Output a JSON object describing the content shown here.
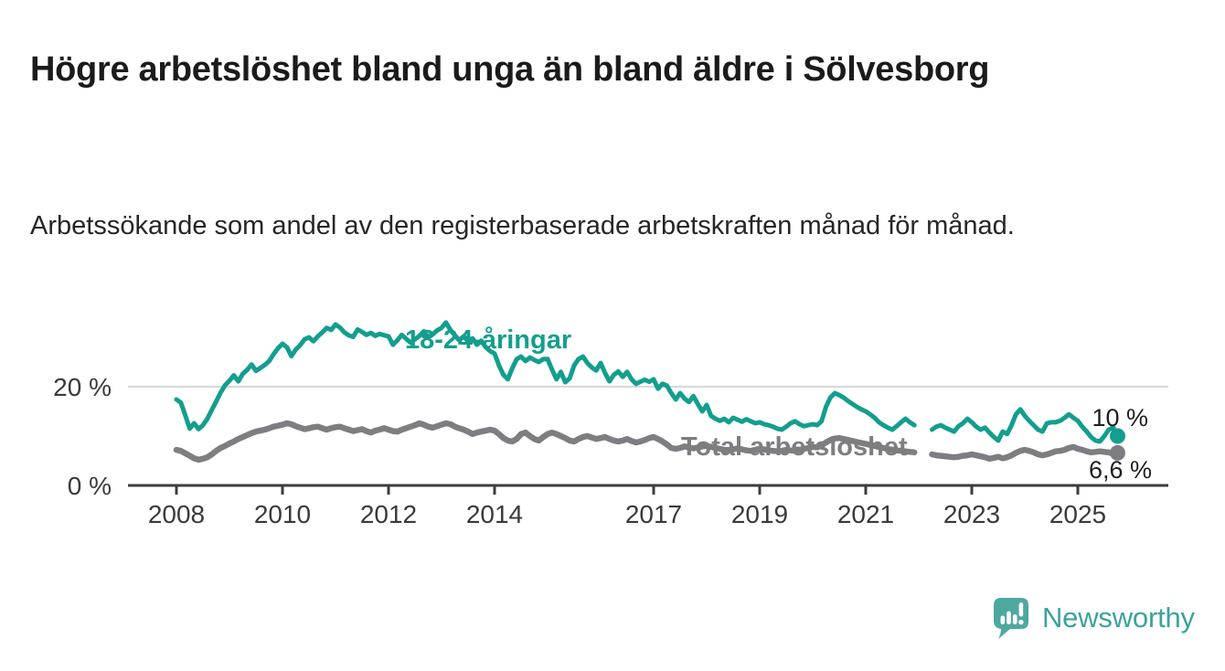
{
  "title": "Högre arbetslöshet bland unga än bland äldre i Sölvesborg",
  "subtitle": "Arbetssökande som andel av den registerbaserade arbetskraften månad för månad.",
  "branding": {
    "logo_text": "Newsworthy",
    "logo_text_color": "#3ba39b",
    "logo_icon_color": "#4da9a0"
  },
  "colors": {
    "youth_line": "#139e8e",
    "total_line": "#7d7d82",
    "gridline": "#d8d8d8",
    "axis": "#3c3c3c",
    "tick_text": "#3a3a3a",
    "end_label_text": "#1f1f1f"
  },
  "chart_data": {
    "type": "line",
    "title": "Högre arbetslöshet bland unga än bland äldre i Sölvesborg",
    "subtitle": "Arbetssökande som andel av den registerbaserade arbetskraften månad för månad.",
    "unit": "%",
    "frequency": "monthly",
    "start": "2008-01",
    "end": "2025-10",
    "data_gap": [
      "2022-01",
      "2022-02",
      "2022-03"
    ],
    "xlim_years": [
      2007.1,
      2026.7
    ],
    "ylim": [
      0,
      36
    ],
    "grid": "horizontal-at-20-only",
    "x_ticks": [
      {
        "year": 2008,
        "label": "2008"
      },
      {
        "year": 2010,
        "label": "2010"
      },
      {
        "year": 2012,
        "label": "2012"
      },
      {
        "year": 2014,
        "label": "2014"
      },
      {
        "year": 2017,
        "label": "2017"
      },
      {
        "year": 2019,
        "label": "2019"
      },
      {
        "year": 2021,
        "label": "2021"
      },
      {
        "year": 2023,
        "label": "2023"
      },
      {
        "year": 2025,
        "label": "2025"
      }
    ],
    "y_ticks": [
      {
        "value": 20,
        "label": "20 %"
      },
      {
        "value": 0,
        "label": "0 %"
      }
    ],
    "legend_position": "inline-labels-on-lines",
    "series": [
      {
        "name": "18-24-åringar",
        "color": "#139e8e",
        "end_value": 10.0,
        "end_label": "10 %",
        "values": [
          17.4,
          16.8,
          14.2,
          11.5,
          12.6,
          11.4,
          12.2,
          13.5,
          15.3,
          17.0,
          18.8,
          20.3,
          21.2,
          22.3,
          21.1,
          22.6,
          23.4,
          24.5,
          23.2,
          23.8,
          24.4,
          25.2,
          26.6,
          27.8,
          28.7,
          28.0,
          26.2,
          27.5,
          28.4,
          29.6,
          30.0,
          29.2,
          30.2,
          31.0,
          31.9,
          31.5,
          32.6,
          32.0,
          31.0,
          30.4,
          30.1,
          31.6,
          31.1,
          30.5,
          30.9,
          30.3,
          30.7,
          30.4,
          30.2,
          28.5,
          29.4,
          30.5,
          29.7,
          28.9,
          29.6,
          30.3,
          31.2,
          30.0,
          30.6,
          31.4,
          31.9,
          33.0,
          31.5,
          30.4,
          29.4,
          30.2,
          29.2,
          29.8,
          28.5,
          29.3,
          28.0,
          27.2,
          26.7,
          24.3,
          22.4,
          21.5,
          23.7,
          25.6,
          26.1,
          25.2,
          25.9,
          25.4,
          25.0,
          25.6,
          25.6,
          23.5,
          21.5,
          23.0,
          20.9,
          21.7,
          24.3,
          25.6,
          26.1,
          24.8,
          23.9,
          23.3,
          24.8,
          22.8,
          21.1,
          22.4,
          23.1,
          22.0,
          23.0,
          21.5,
          20.6,
          21.0,
          21.4,
          21.0,
          21.5,
          19.6,
          20.6,
          20.2,
          18.7,
          17.4,
          18.7,
          17.6,
          16.9,
          18.1,
          16.5,
          15.0,
          16.3,
          14.1,
          13.5,
          13.1,
          13.5,
          12.8,
          13.7,
          13.3,
          12.9,
          13.4,
          13.0,
          12.6,
          12.8,
          12.4,
          12.2,
          11.9,
          11.5,
          11.3,
          11.9,
          12.6,
          13.0,
          12.4,
          12.0,
          12.2,
          12.4,
          12.2,
          13.0,
          15.9,
          17.8,
          18.7,
          18.3,
          17.8,
          17.1,
          16.5,
          15.9,
          15.4,
          15.0,
          14.4,
          13.7,
          12.8,
          12.2,
          11.7,
          11.3,
          12.0,
          12.8,
          13.5,
          12.8,
          12.2,
          null,
          null,
          null,
          11.3,
          11.9,
          12.2,
          11.7,
          11.3,
          10.9,
          12.0,
          12.6,
          13.5,
          12.8,
          11.9,
          11.3,
          11.7,
          10.7,
          9.8,
          9.1,
          10.9,
          10.4,
          12.2,
          14.4,
          15.4,
          14.1,
          13.1,
          12.2,
          11.3,
          10.9,
          12.6,
          12.8,
          12.8,
          13.1,
          13.7,
          14.4,
          13.7,
          13.1,
          11.9,
          10.9,
          9.8,
          9.1,
          8.9,
          10.0,
          11.3,
          11.7,
          10.0
        ]
      },
      {
        "name": "Total arbetslöshet",
        "color": "#7d7d82",
        "end_value": 6.6,
        "end_label": "6,6 %",
        "values": [
          7.2,
          7.0,
          6.5,
          6.0,
          5.5,
          5.2,
          5.4,
          5.7,
          6.3,
          7.0,
          7.6,
          8.0,
          8.5,
          8.9,
          9.4,
          9.8,
          10.2,
          10.6,
          10.9,
          11.1,
          11.3,
          11.6,
          11.9,
          12.1,
          12.3,
          12.6,
          12.4,
          12.0,
          11.7,
          11.4,
          11.6,
          11.8,
          11.9,
          11.6,
          11.3,
          11.6,
          11.8,
          11.9,
          11.6,
          11.3,
          11.0,
          11.2,
          11.4,
          11.0,
          10.7,
          11.1,
          11.3,
          11.6,
          11.3,
          11.0,
          10.9,
          11.3,
          11.6,
          11.9,
          12.2,
          12.6,
          12.3,
          11.9,
          11.7,
          12.0,
          12.3,
          12.6,
          12.4,
          11.9,
          11.6,
          11.3,
          10.9,
          10.4,
          10.7,
          10.9,
          11.1,
          11.3,
          11.1,
          10.4,
          9.6,
          9.1,
          8.9,
          9.4,
          10.4,
          10.7,
          10.0,
          9.4,
          9.1,
          9.8,
          10.4,
          10.7,
          10.4,
          10.0,
          9.6,
          9.1,
          8.9,
          9.4,
          9.8,
          10.0,
          9.7,
          9.4,
          9.6,
          9.8,
          9.4,
          9.1,
          8.9,
          9.1,
          9.4,
          9.0,
          8.7,
          8.9,
          9.2,
          9.6,
          9.8,
          9.4,
          8.9,
          8.3,
          7.6,
          7.4,
          7.6,
          7.9,
          7.7,
          7.5,
          7.7,
          7.9,
          8.0,
          7.8,
          7.6,
          7.4,
          7.2,
          7.1,
          7.3,
          7.5,
          7.3,
          7.1,
          7.0,
          7.2,
          7.4,
          7.3,
          7.1,
          7.0,
          6.9,
          7.0,
          7.2,
          7.1,
          7.0,
          7.2,
          7.4,
          7.6,
          7.8,
          7.7,
          8.1,
          8.7,
          9.2,
          9.5,
          9.6,
          9.4,
          9.2,
          9.0,
          8.8,
          8.6,
          8.4,
          8.2,
          8.0,
          7.8,
          7.6,
          7.4,
          7.2,
          7.1,
          7.0,
          6.9,
          6.8,
          6.7,
          null,
          null,
          null,
          6.3,
          6.1,
          6.0,
          5.9,
          5.8,
          5.7,
          5.8,
          6.0,
          6.1,
          6.3,
          6.1,
          5.9,
          5.7,
          5.4,
          5.6,
          5.8,
          5.5,
          5.7,
          6.1,
          6.6,
          7.0,
          7.2,
          7.0,
          6.7,
          6.3,
          6.1,
          6.3,
          6.6,
          6.9,
          7.0,
          7.2,
          7.6,
          7.8,
          7.4,
          7.2,
          6.9,
          6.7,
          6.8,
          6.9,
          6.8,
          6.7,
          6.4,
          6.6
        ]
      }
    ]
  }
}
